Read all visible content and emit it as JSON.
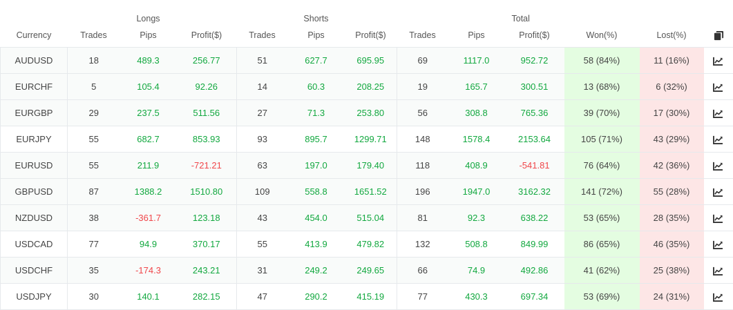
{
  "header": {
    "groups": {
      "longs": "Longs",
      "shorts": "Shorts",
      "total": "Total"
    },
    "columns": {
      "currency": "Currency",
      "long_trades": "Trades",
      "long_pips": "Pips",
      "long_profit": "Profit($)",
      "short_trades": "Trades",
      "short_pips": "Pips",
      "short_profit": "Profit($)",
      "total_trades": "Trades",
      "total_pips": "Pips",
      "total_profit": "Profit($)",
      "won": "Won(%)",
      "lost": "Lost(%)"
    },
    "header_icon": "copy-icon"
  },
  "colors": {
    "positive": "#12a83f",
    "negative": "#f0464a",
    "won_bg": "#e4fde1",
    "lost_bg": "#fde6e6"
  },
  "rows": [
    {
      "currency": "AUDUSD",
      "long_trades": "18",
      "long_pips": "489.3",
      "long_profit": "256.77",
      "short_trades": "51",
      "short_pips": "627.7",
      "short_profit": "695.95",
      "total_trades": "69",
      "total_pips": "1117.0",
      "total_profit": "952.72",
      "won": "58 (84%)",
      "lost": "11 (16%)",
      "icon": "chart-icon"
    },
    {
      "currency": "EURCHF",
      "long_trades": "5",
      "long_pips": "105.4",
      "long_profit": "92.26",
      "short_trades": "14",
      "short_pips": "60.3",
      "short_profit": "208.25",
      "total_trades": "19",
      "total_pips": "165.7",
      "total_profit": "300.51",
      "won": "13 (68%)",
      "lost": "6 (32%)",
      "icon": "chart-icon"
    },
    {
      "currency": "EURGBP",
      "long_trades": "29",
      "long_pips": "237.5",
      "long_profit": "511.56",
      "short_trades": "27",
      "short_pips": "71.3",
      "short_profit": "253.80",
      "total_trades": "56",
      "total_pips": "308.8",
      "total_profit": "765.36",
      "won": "39 (70%)",
      "lost": "17 (30%)",
      "icon": "chart-icon"
    },
    {
      "currency": "EURJPY",
      "long_trades": "55",
      "long_pips": "682.7",
      "long_profit": "853.93",
      "short_trades": "93",
      "short_pips": "895.7",
      "short_profit": "1299.71",
      "total_trades": "148",
      "total_pips": "1578.4",
      "total_profit": "2153.64",
      "won": "105 (71%)",
      "lost": "43 (29%)",
      "icon": "chart-icon"
    },
    {
      "currency": "EURUSD",
      "long_trades": "55",
      "long_pips": "211.9",
      "long_profit": "-721.21",
      "short_trades": "63",
      "short_pips": "197.0",
      "short_profit": "179.40",
      "total_trades": "118",
      "total_pips": "408.9",
      "total_profit": "-541.81",
      "won": "76 (64%)",
      "lost": "42 (36%)",
      "icon": "chart-icon"
    },
    {
      "currency": "GBPUSD",
      "long_trades": "87",
      "long_pips": "1388.2",
      "long_profit": "1510.80",
      "short_trades": "109",
      "short_pips": "558.8",
      "short_profit": "1651.52",
      "total_trades": "196",
      "total_pips": "1947.0",
      "total_profit": "3162.32",
      "won": "141 (72%)",
      "lost": "55 (28%)",
      "icon": "chart-icon"
    },
    {
      "currency": "NZDUSD",
      "long_trades": "38",
      "long_pips": "-361.7",
      "long_profit": "123.18",
      "short_trades": "43",
      "short_pips": "454.0",
      "short_profit": "515.04",
      "total_trades": "81",
      "total_pips": "92.3",
      "total_profit": "638.22",
      "won": "53 (65%)",
      "lost": "28 (35%)",
      "icon": "chart-icon"
    },
    {
      "currency": "USDCAD",
      "long_trades": "77",
      "long_pips": "94.9",
      "long_profit": "370.17",
      "short_trades": "55",
      "short_pips": "413.9",
      "short_profit": "479.82",
      "total_trades": "132",
      "total_pips": "508.8",
      "total_profit": "849.99",
      "won": "86 (65%)",
      "lost": "46 (35%)",
      "icon": "chart-icon"
    },
    {
      "currency": "USDCHF",
      "long_trades": "35",
      "long_pips": "-174.3",
      "long_profit": "243.21",
      "short_trades": "31",
      "short_pips": "249.2",
      "short_profit": "249.65",
      "total_trades": "66",
      "total_pips": "74.9",
      "total_profit": "492.86",
      "won": "41 (62%)",
      "lost": "25 (38%)",
      "icon": "chart-icon"
    },
    {
      "currency": "USDJPY",
      "long_trades": "30",
      "long_pips": "140.1",
      "long_profit": "282.15",
      "short_trades": "47",
      "short_pips": "290.2",
      "short_profit": "415.19",
      "total_trades": "77",
      "total_pips": "430.3",
      "total_profit": "697.34",
      "won": "53 (69%)",
      "lost": "24 (31%)",
      "icon": "chart-icon"
    }
  ]
}
